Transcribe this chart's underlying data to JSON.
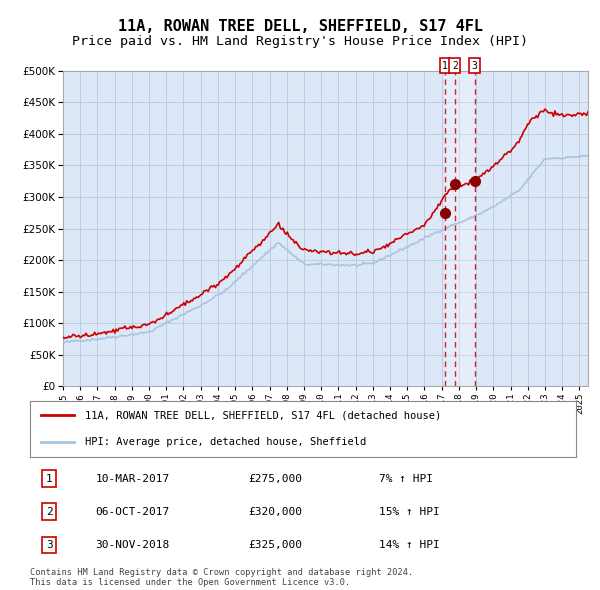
{
  "title": "11A, ROWAN TREE DELL, SHEFFIELD, S17 4FL",
  "subtitle": "Price paid vs. HM Land Registry's House Price Index (HPI)",
  "background_color": "#ffffff",
  "plot_bg_color": "#dce8f8",
  "red_line_color": "#cc0000",
  "blue_line_color": "#aac4e0",
  "title_fontsize": 11,
  "subtitle_fontsize": 9.5,
  "purchase_dates": [
    2017.19,
    2017.76,
    2018.92
  ],
  "purchase_prices": [
    275000,
    320000,
    325000
  ],
  "purchase_labels": [
    "1",
    "2",
    "3"
  ],
  "shade_start": 2017.19,
  "shade_end": 2018.92,
  "legend_entries": [
    "11A, ROWAN TREE DELL, SHEFFIELD, S17 4FL (detached house)",
    "HPI: Average price, detached house, Sheffield"
  ],
  "table_rows": [
    [
      "1",
      "10-MAR-2017",
      "£275,000",
      "7% ↑ HPI"
    ],
    [
      "2",
      "06-OCT-2017",
      "£320,000",
      "15% ↑ HPI"
    ],
    [
      "3",
      "30-NOV-2018",
      "£325,000",
      "14% ↑ HPI"
    ]
  ],
  "footer_text": "Contains HM Land Registry data © Crown copyright and database right 2024.\nThis data is licensed under the Open Government Licence v3.0.",
  "xmin": 1995.0,
  "xmax": 2025.5,
  "ymin": 0,
  "ymax": 500000,
  "yticks": [
    0,
    50000,
    100000,
    150000,
    200000,
    250000,
    300000,
    350000,
    400000,
    450000,
    500000
  ],
  "hpi_milestones_t": [
    1995,
    1997,
    2000,
    2003,
    2004.5,
    2007.5,
    2009,
    2012,
    2013,
    2016,
    2017.5,
    2018.5,
    2020,
    2021.5,
    2023,
    2025.5
  ],
  "hpi_milestones_v": [
    70000,
    76000,
    88000,
    130000,
    155000,
    230000,
    195000,
    193000,
    195000,
    235000,
    255000,
    265000,
    285000,
    310000,
    360000,
    365000
  ],
  "prop_milestones_t": [
    1995,
    1997,
    2000,
    2003,
    2004.5,
    2007.5,
    2009,
    2012,
    2013,
    2016,
    2017.5,
    2018.5,
    2020,
    2021.5,
    2022,
    2023,
    2024,
    2025.5
  ],
  "prop_milestones_v": [
    78000,
    83000,
    98000,
    145000,
    175000,
    258000,
    215000,
    210000,
    213000,
    255000,
    315000,
    322000,
    350000,
    390000,
    420000,
    440000,
    430000,
    435000
  ]
}
